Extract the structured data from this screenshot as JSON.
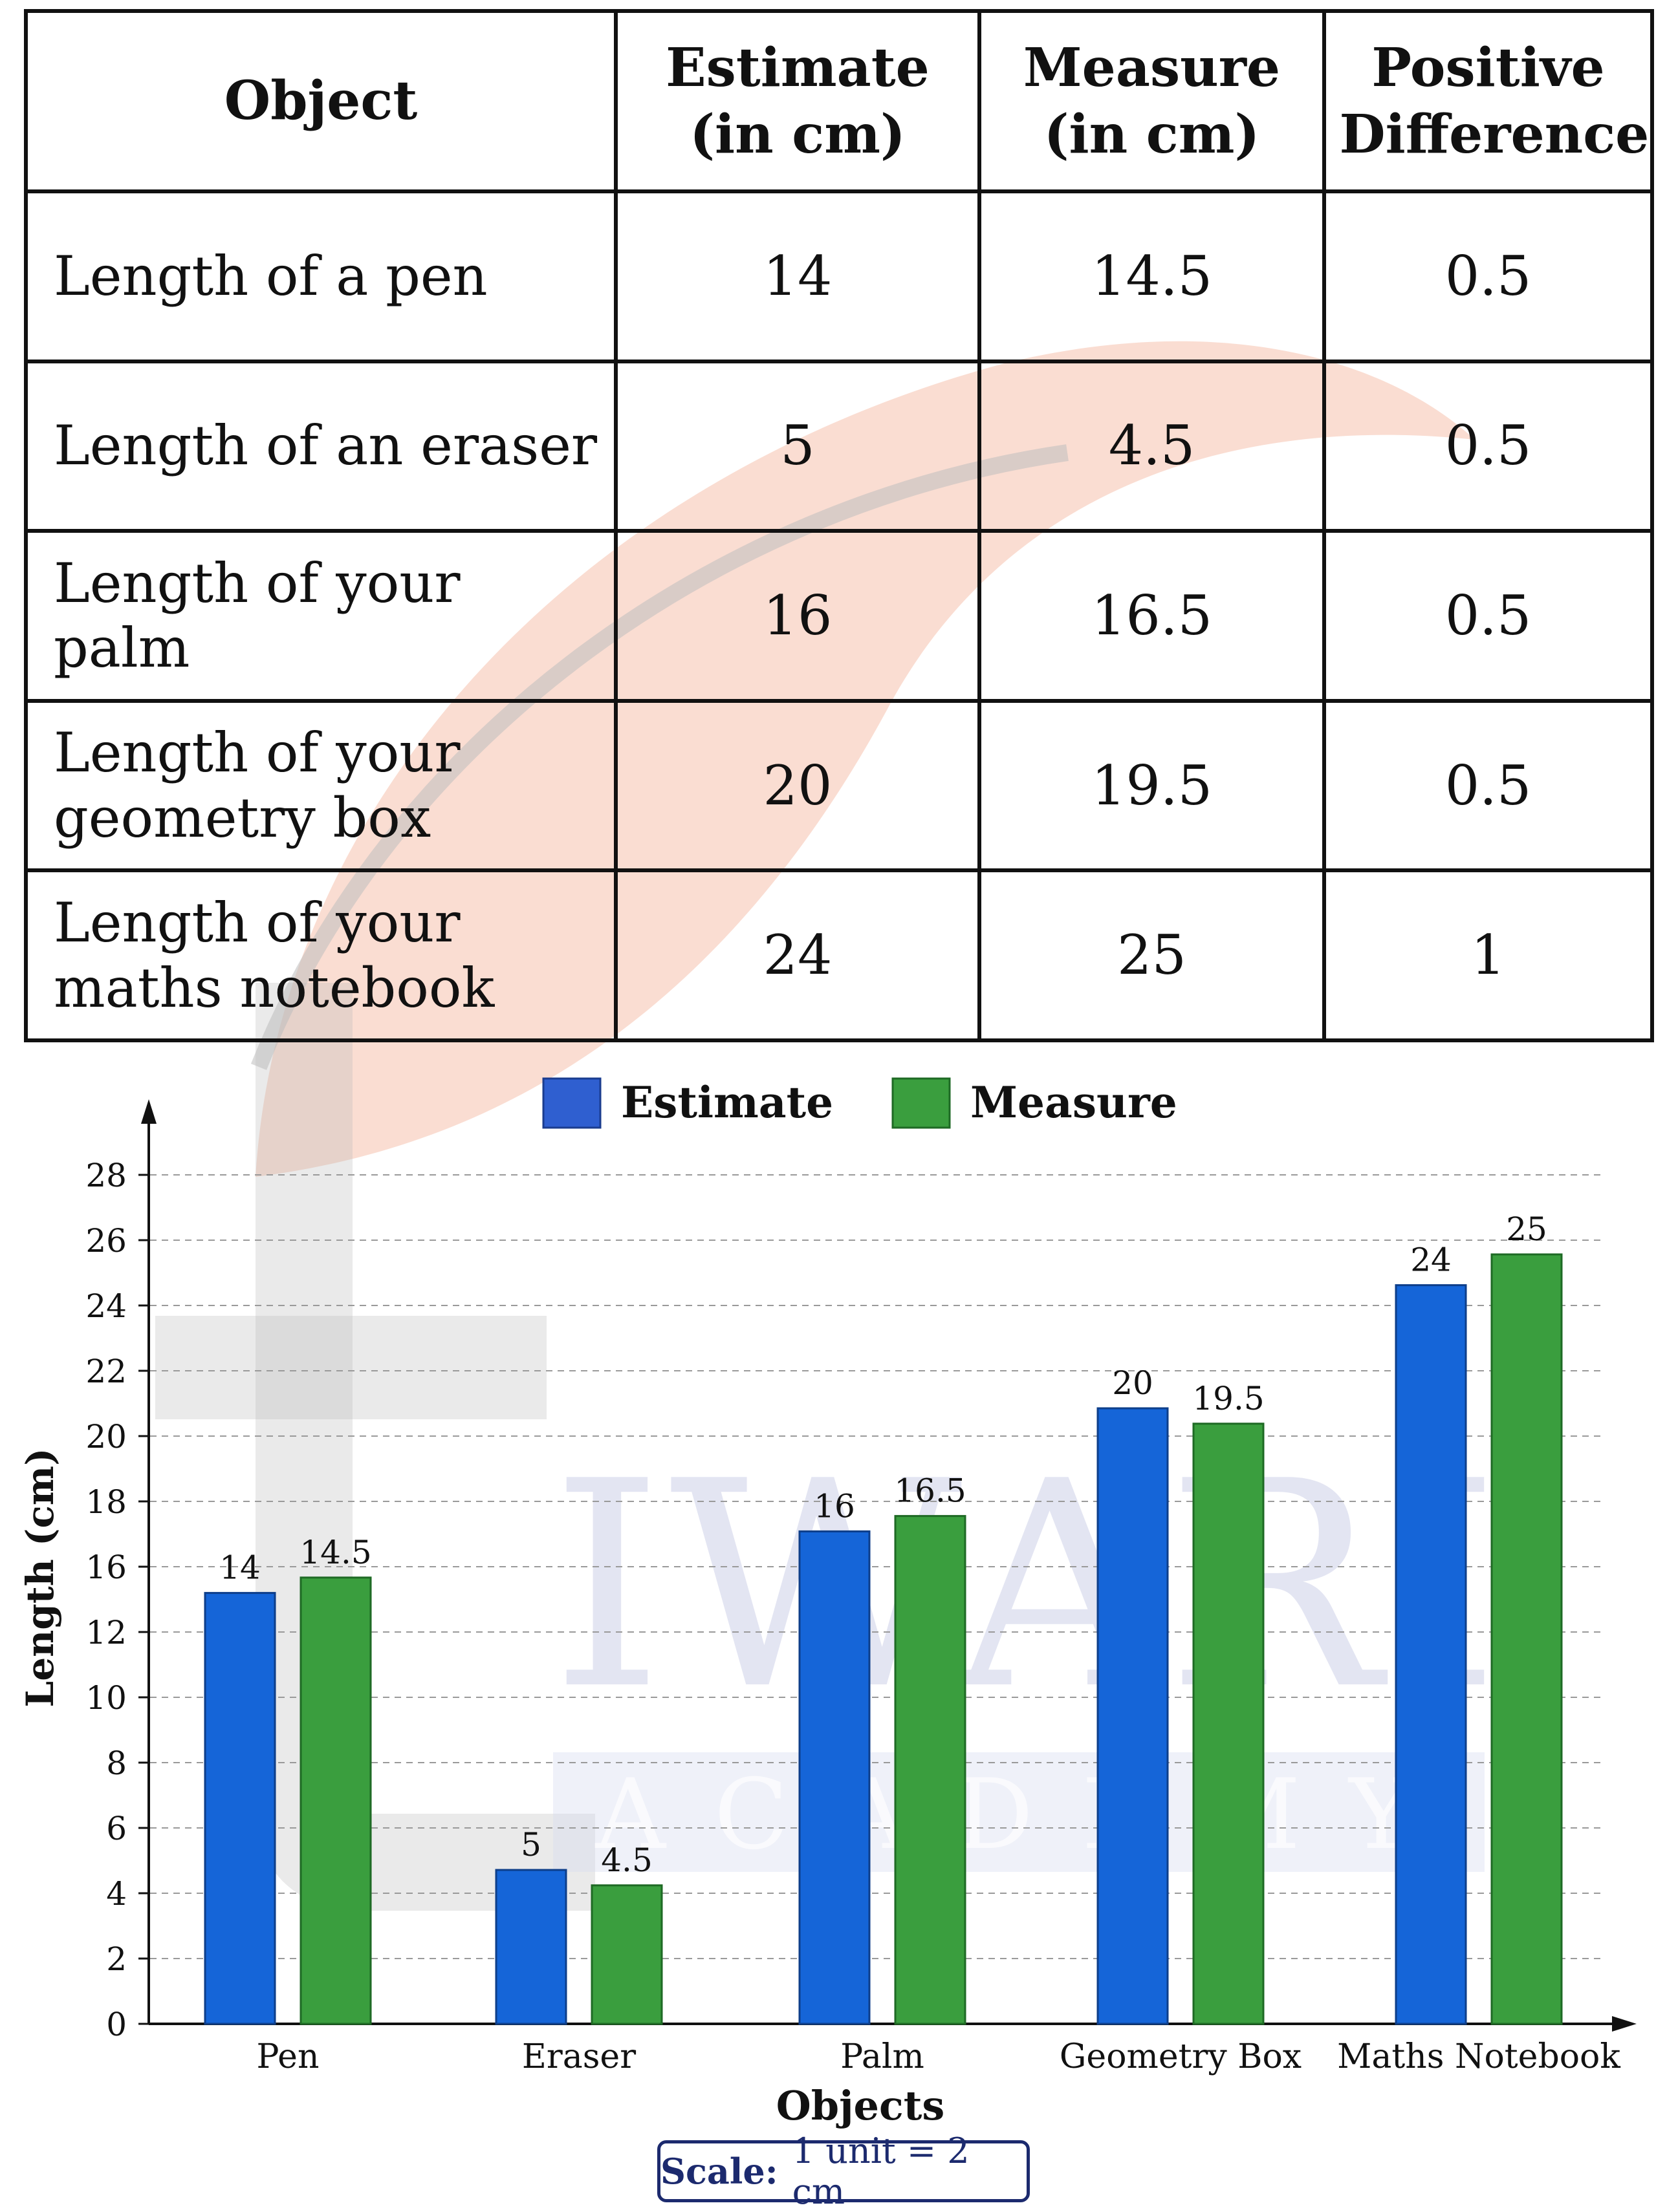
{
  "table": {
    "headers": [
      "Object",
      "Estimate (in cm)",
      "Measure (in cm)",
      "Positive Difference"
    ],
    "rows": [
      [
        "Length of a pen",
        "14",
        "14.5",
        "0.5"
      ],
      [
        "Length of an eraser",
        "5",
        "4.5",
        "0.5"
      ],
      [
        "Length of your palm",
        "16",
        "16.5",
        "0.5"
      ],
      [
        "Length of your geometry box",
        "20",
        "19.5",
        "0.5"
      ],
      [
        "Length of your maths notebook",
        "24",
        "25",
        "1"
      ]
    ]
  },
  "chart_data": {
    "type": "bar",
    "categories": [
      "Pen",
      "Eraser",
      "Palm",
      "Geometry Box",
      "Maths Notebook"
    ],
    "series": [
      {
        "name": "Estimate",
        "values": [
          14,
          5,
          16,
          20,
          24
        ],
        "color": "#1565d8"
      },
      {
        "name": "Measure",
        "values": [
          14.5,
          4.5,
          16.5,
          19.5,
          25
        ],
        "color": "#3a9e3e"
      }
    ],
    "y_ticks": [
      0,
      2,
      4,
      6,
      8,
      10,
      12,
      16,
      18,
      20,
      22,
      24,
      26,
      28
    ],
    "xlabel": "Objects",
    "ylabel": "Length (cm)",
    "grid": true,
    "legend_position": "top-center"
  },
  "scale": {
    "label": "Scale:",
    "value": "1 unit = 2 cm"
  },
  "watermark": {
    "line1": "IWARI",
    "line2": "ACADEMY"
  }
}
